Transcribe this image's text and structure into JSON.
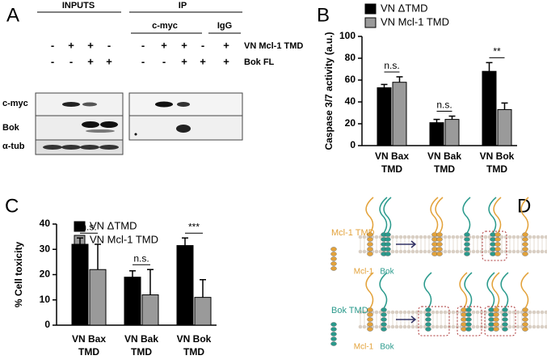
{
  "panel_a": {
    "label": "A",
    "inputs": "INPUTS",
    "ip": "IP",
    "ip_groups": [
      "c-myc",
      "IgG"
    ],
    "treatments": [
      "VN Mcl-1 TMD",
      "Bok FL"
    ],
    "signs": [
      [
        "-",
        "+",
        "+",
        "-",
        "-",
        "+",
        "+",
        "-",
        "+"
      ],
      [
        "-",
        "-",
        "+",
        "+",
        "-",
        "-",
        "+",
        "+",
        "+"
      ]
    ],
    "blots": [
      "c-myc",
      "Bok",
      "α-tub"
    ]
  },
  "chart_data": [
    {
      "type": "bar",
      "label": "B",
      "ylabel": "Caspase 3/7 activity  (a.u.)",
      "categories": [
        [
          "VN Bax",
          "TMD"
        ],
        [
          "VN Bak",
          "TMD"
        ],
        [
          "VN Bok",
          "TMD"
        ]
      ],
      "series": [
        {
          "name": "VN ΔTMD",
          "color": "#000000",
          "values": [
            53,
            21,
            68
          ],
          "errors": [
            3,
            3,
            8
          ]
        },
        {
          "name": "VN Mcl-1 TMD",
          "color": "#9a9a9a",
          "values": [
            58,
            24,
            33
          ],
          "errors": [
            5,
            3,
            6
          ]
        }
      ],
      "significance": [
        "n.s.",
        "n.s.",
        "**"
      ],
      "ylim": [
        0,
        100
      ],
      "yticks": [
        0,
        20,
        40,
        60,
        80,
        100
      ]
    },
    {
      "type": "bar",
      "label": "C",
      "ylabel": "% Cell toxicity",
      "categories": [
        [
          "VN Bax",
          "TMD"
        ],
        [
          "VN Bak",
          "TMD"
        ],
        [
          "VN Bok",
          "TMD"
        ]
      ],
      "series": [
        {
          "name": "VN ΔTMD",
          "color": "#000000",
          "values": [
            32,
            19,
            31.5
          ],
          "errors": [
            2.5,
            2.5,
            3
          ]
        },
        {
          "name": "VN Mcl-1 TMD",
          "color": "#9a9a9a",
          "values": [
            22,
            12,
            11
          ],
          "errors": [
            10,
            10,
            7
          ]
        }
      ],
      "significance": [
        "n.s.",
        "n.s.",
        "***"
      ],
      "ylim": [
        0,
        40
      ],
      "yticks": [
        0,
        10,
        20,
        30,
        40
      ]
    }
  ],
  "panel_d": {
    "label": "D",
    "rows": [
      {
        "title": "Mcl-1 TMD",
        "left": "Mcl-1",
        "right": "Bok"
      },
      {
        "title": "Bok TMD",
        "left": "Mcl-1",
        "right": "Bok"
      }
    ]
  }
}
